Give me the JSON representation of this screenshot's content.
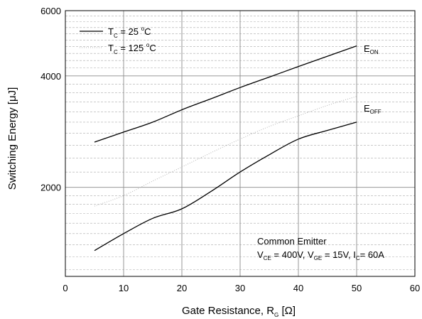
{
  "chart_data": {
    "type": "line",
    "xlabel": {
      "main": "Gate Resistance, R",
      "sub": "G",
      "unit": " [Ω]"
    },
    "ylabel": "Switching Energy [μJ]",
    "y_scale": "log",
    "xlim": [
      0,
      60
    ],
    "ylim": [
      1150,
      6000
    ],
    "x_ticks": [
      0,
      10,
      20,
      30,
      40,
      50,
      60
    ],
    "y_ticks": [
      2000,
      4000,
      6000
    ],
    "grid": true,
    "legend_position": "top-left",
    "legend": [
      {
        "base": "T",
        "sub": "C",
        "rest": " = 25 ",
        "sup": "o",
        "unit": "C",
        "style": "solid"
      },
      {
        "base": "T",
        "sub": "C",
        "rest": " = 125 ",
        "sup": "o",
        "unit": "C",
        "style": "dotted"
      }
    ],
    "series": [
      {
        "name": "E_ON",
        "label_main": "E",
        "label_sub": "ON",
        "condition": "TC = 25°C",
        "style": "solid",
        "x": [
          5,
          10,
          15,
          20,
          25,
          30,
          35,
          40,
          45,
          50
        ],
        "y": [
          2650,
          2820,
          3000,
          3240,
          3470,
          3720,
          3970,
          4240,
          4520,
          4820
        ]
      },
      {
        "name": "E_OFF",
        "label_main": "E",
        "label_sub": "OFF",
        "condition": "TC = 25°C",
        "style": "solid",
        "x": [
          5,
          10,
          15,
          20,
          25,
          30,
          35,
          40,
          45,
          50
        ],
        "y": [
          1350,
          1500,
          1650,
          1750,
          1950,
          2200,
          2450,
          2700,
          2850,
          3000
        ]
      },
      {
        "name": "E_ON_125",
        "condition": "TC = 125°C",
        "style": "dotted",
        "x": [
          5,
          10,
          15,
          20,
          25,
          30,
          35,
          40,
          45,
          50
        ],
        "y": [
          1780,
          1900,
          2080,
          2270,
          2480,
          2700,
          2920,
          3120,
          3330,
          3520
        ]
      }
    ],
    "annotations": {
      "line1": "Common Emitter",
      "line2": [
        {
          "t": "V"
        },
        {
          "t": "CE",
          "sub": true
        },
        {
          "t": " = 400V, V"
        },
        {
          "t": "GE",
          "sub": true
        },
        {
          "t": " = 15V, I"
        },
        {
          "t": "C",
          "sub": true
        },
        {
          "t": "= 60A"
        }
      ]
    },
    "colors": {
      "line": "#000000",
      "dotted_line": "#b5b5b5",
      "grid_major": "#8c8c8c",
      "grid_minor": "#aaaaaa"
    }
  }
}
